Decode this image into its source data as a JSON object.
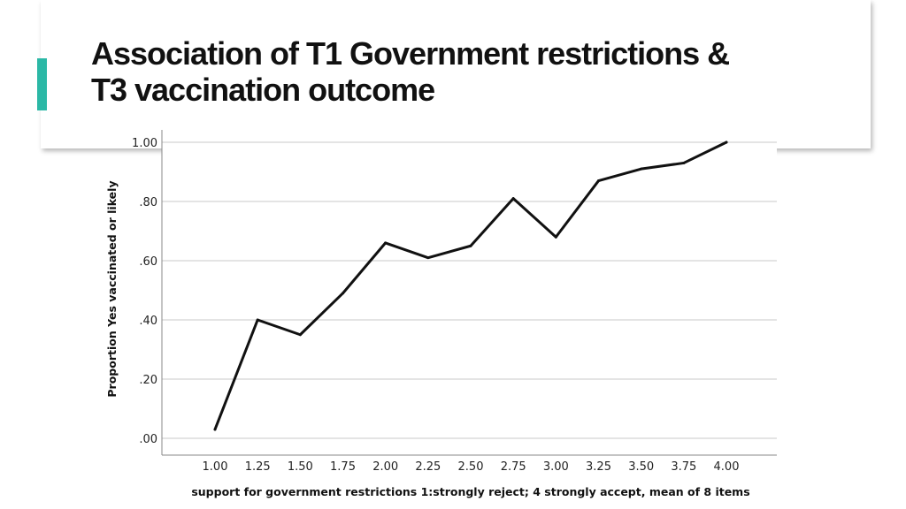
{
  "slide": {
    "title_line1": "Association of T1 Government restrictions &",
    "title_line2": "T3 vaccination outcome",
    "accent_color": "#2bb8a6"
  },
  "chart_data": {
    "type": "line",
    "x": [
      1.0,
      1.25,
      1.5,
      1.75,
      2.0,
      2.25,
      2.5,
      2.75,
      3.0,
      3.25,
      3.5,
      3.75,
      4.0
    ],
    "xtick_labels": [
      "1.00",
      "1.25",
      "1.50",
      "1.75",
      "2.00",
      "2.25",
      "2.50",
      "2.75",
      "3.00",
      "3.25",
      "3.50",
      "3.75",
      "4.00"
    ],
    "series": [
      {
        "values": [
          0.03,
          0.4,
          0.35,
          0.49,
          0.66,
          0.61,
          0.65,
          0.81,
          0.68,
          0.87,
          0.91,
          0.93,
          1.0
        ],
        "color": "#111111"
      }
    ],
    "ylim": [
      0,
      1
    ],
    "yticks": [
      0,
      0.2,
      0.4,
      0.6,
      0.8,
      1.0
    ],
    "ytick_labels": [
      ".00",
      ".20",
      ".40",
      ".60",
      ".80",
      "1.00"
    ],
    "xlabel": "support for government restrictions 1:strongly reject; 4 strongly accept, mean of 8 items",
    "ylabel": "Proportion Yes vaccinated or likely",
    "grid": true
  }
}
